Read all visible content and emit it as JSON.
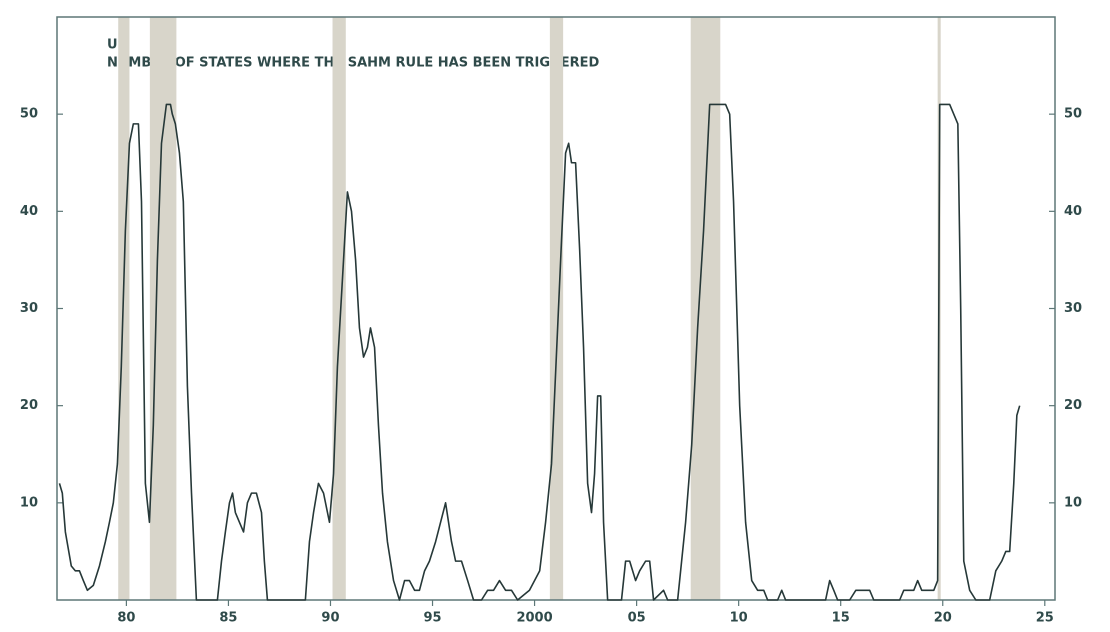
{
  "chart_data": {
    "type": "line",
    "title": "US",
    "subtitle": "NUMBER OF STATES WHERE THE SAHM RULE HAS BEEN TRIGGERED",
    "color": "#263838",
    "recession_color": "#d8d5ca",
    "recessions": [
      [
        1979.6,
        1980.15
      ],
      [
        1981.15,
        1982.45
      ],
      [
        1990.1,
        1990.75
      ],
      [
        2000.75,
        2001.4
      ],
      [
        2007.65,
        2009.1
      ],
      [
        2019.75,
        2019.9
      ]
    ],
    "xlim": [
      1976.6,
      2025.5
    ],
    "xticks": [
      {
        "value": 1980,
        "label": "80"
      },
      {
        "value": 1985,
        "label": "85"
      },
      {
        "value": 1990,
        "label": "90"
      },
      {
        "value": 1995,
        "label": "95"
      },
      2000,
      {
        "value": 2005,
        "label": "05"
      },
      {
        "value": 2010,
        "label": "10"
      },
      {
        "value": 2015,
        "label": "15"
      },
      {
        "value": 2020,
        "label": "20"
      },
      {
        "value": 2025,
        "label": "25"
      }
    ],
    "ylim": [
      0,
      60
    ],
    "yticks": [
      10,
      20,
      30,
      40,
      50
    ],
    "y2lim": [
      0,
      60
    ],
    "y2ticks": [
      10,
      20,
      30,
      40,
      50
    ],
    "x": [
      1976.72,
      1976.86,
      1977.01,
      1977.3,
      1977.5,
      1977.7,
      1977.89,
      1978.09,
      1978.38,
      1978.68,
      1978.97,
      1979.17,
      1979.36,
      1979.56,
      1979.75,
      1979.95,
      1980.15,
      1980.34,
      1980.59,
      1980.74,
      1980.93,
      1981.13,
      1981.32,
      1981.52,
      1981.72,
      1981.96,
      1982.16,
      1982.25,
      1982.4,
      1982.6,
      1982.79,
      1982.99,
      1983.19,
      1983.43,
      1984.46,
      1984.66,
      1984.85,
      1985.05,
      1985.2,
      1985.34,
      1985.54,
      1985.74,
      1985.93,
      1986.13,
      1986.37,
      1986.62,
      1986.76,
      1986.91,
      1988.77,
      1988.97,
      1989.17,
      1989.41,
      1989.66,
      1989.95,
      1990.15,
      1990.34,
      1990.64,
      1990.83,
      1991.03,
      1991.23,
      1991.42,
      1991.62,
      1991.81,
      1991.96,
      1992.16,
      1992.35,
      1992.55,
      1992.79,
      1993.09,
      1993.38,
      1993.63,
      1993.87,
      1994.12,
      1994.36,
      1994.61,
      1994.85,
      1995.15,
      1995.64,
      1995.93,
      1996.13,
      1996.42,
      1996.72,
      1997.01,
      1997.4,
      1997.7,
      1997.99,
      1998.28,
      1998.58,
      1998.87,
      1999.17,
      1999.75,
      2000.25,
      2000.54,
      2000.83,
      2001.13,
      2001.32,
      2001.52,
      2001.67,
      2001.81,
      2002.01,
      2002.21,
      2002.4,
      2002.6,
      2002.79,
      2002.94,
      2003.09,
      2003.24,
      2003.38,
      2003.58,
      2004.26,
      2004.46,
      2004.66,
      2004.95,
      2005.15,
      2005.44,
      2005.64,
      2005.83,
      2006.32,
      2006.52,
      2007.01,
      2007.4,
      2007.7,
      2007.99,
      2008.28,
      2008.58,
      2009.36,
      2009.56,
      2009.75,
      2010.05,
      2010.34,
      2010.64,
      2010.93,
      2011.23,
      2011.42,
      2011.91,
      2012.11,
      2012.3,
      2014.26,
      2014.46,
      2014.66,
      2014.85,
      2015.44,
      2015.74,
      2016.42,
      2016.62,
      2017.89,
      2018.09,
      2018.58,
      2018.77,
      2018.97,
      2019.56,
      2019.75,
      2019.85,
      2020.34,
      2020.54,
      2020.74,
      2020.88,
      2021.03,
      2021.32,
      2021.62,
      2022.3,
      2022.6,
      2022.89,
      2023.09,
      2023.28,
      2023.48,
      2023.63,
      2023.77
    ],
    "values": [
      12,
      11,
      7,
      3.5,
      3,
      3,
      2,
      1,
      1.5,
      3.5,
      6,
      8,
      10,
      14,
      24,
      38,
      47,
      49,
      49,
      41,
      12,
      8,
      18,
      35,
      47,
      51,
      51,
      50,
      49,
      46,
      41,
      22,
      11,
      0,
      0,
      4,
      7,
      10,
      11,
      9,
      8,
      7,
      10,
      11,
      11,
      9,
      4,
      0,
      0,
      6,
      9,
      12,
      11,
      8,
      13,
      24,
      35,
      42,
      40,
      35,
      28,
      25,
      26,
      28,
      26,
      18,
      11,
      6,
      2,
      0,
      2,
      2,
      1,
      1,
      3,
      4,
      6,
      10,
      6,
      4,
      4,
      2,
      0,
      0,
      1,
      1,
      2,
      1,
      1,
      0,
      1,
      3,
      8,
      14,
      28,
      37,
      46,
      47,
      45,
      45,
      36,
      26,
      12,
      9,
      13,
      21,
      21,
      8,
      0,
      0,
      4,
      4,
      2,
      3,
      4,
      4,
      0,
      1,
      0,
      0,
      8,
      16,
      28,
      38,
      51,
      51,
      50,
      41,
      20,
      8,
      2,
      1,
      1,
      0,
      0,
      1,
      0,
      0,
      2,
      1,
      0,
      0,
      1,
      1,
      0,
      0,
      1,
      1,
      2,
      1,
      1,
      2,
      51,
      51,
      50,
      49,
      30,
      4,
      1,
      0,
      0,
      3,
      4,
      5,
      5,
      12,
      19,
      20
    ]
  }
}
